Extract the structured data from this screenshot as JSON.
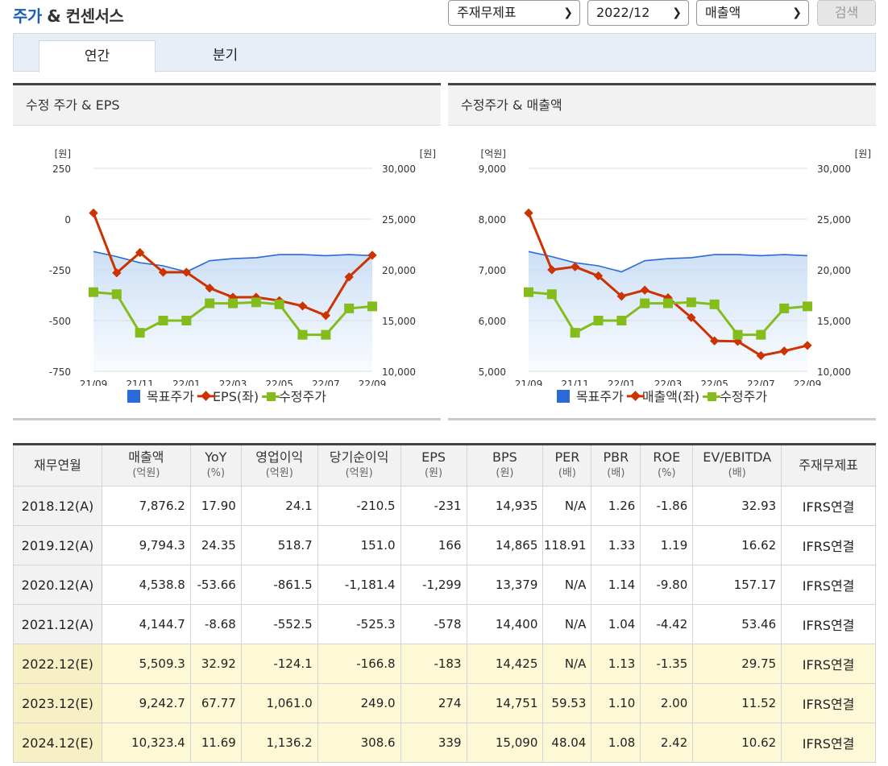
{
  "header": {
    "title_accent": "주가",
    "title_rest": " & 컨센서스",
    "select_statement": "주재무제표",
    "select_period": "2022/12",
    "select_metric": "매출액",
    "search_label": "검색"
  },
  "tabs": [
    {
      "label": "연간"
    },
    {
      "label": "분기"
    }
  ],
  "charts": {
    "left_title": "수정 주가 & EPS",
    "right_title": "수정주가 & 매출액"
  },
  "chart_data": [
    {
      "type": "line",
      "x": [
        "21/09",
        "21/10",
        "21/11",
        "21/12",
        "22/01",
        "22/02",
        "22/03",
        "22/04",
        "22/05",
        "22/06",
        "22/07",
        "22/08",
        "22/09"
      ],
      "x_tick_labels": [
        "21/09",
        "21/11",
        "22/01",
        "22/03",
        "22/05",
        "22/07",
        "22/09"
      ],
      "left_unit": "[원]",
      "right_unit": "[원]",
      "ylim_left": [
        -750,
        250
      ],
      "ylim_right": [
        10000,
        30000
      ],
      "left_ticks": [
        "250",
        "0",
        "-250",
        "-500",
        "-750"
      ],
      "right_ticks": [
        "30,000",
        "25,000",
        "20,000",
        "15,000",
        "10,000"
      ],
      "series": [
        {
          "name": "목표주가",
          "axis": "right",
          "color": "#2b6ad8",
          "values": [
            21800,
            21300,
            20700,
            20400,
            19800,
            20900,
            21100,
            21200,
            21500,
            21500,
            21400,
            21500,
            21400
          ]
        },
        {
          "name": "EPS(좌)",
          "axis": "left",
          "color": "#cc3300",
          "values": [
            30,
            -265,
            -165,
            -262,
            -262,
            -340,
            -385,
            -385,
            -402,
            -428,
            -475,
            -285,
            -178
          ]
        },
        {
          "name": "수정주가",
          "axis": "right",
          "color": "#84bd1b",
          "values": [
            17800,
            17600,
            13800,
            15000,
            15000,
            16700,
            16700,
            16800,
            16600,
            13600,
            13600,
            16200,
            16400
          ]
        }
      ],
      "legend": [
        "목표주가",
        "EPS(좌)",
        "수정주가"
      ],
      "legend_position": "bottom",
      "grid": true
    },
    {
      "type": "line",
      "x": [
        "21/09",
        "21/10",
        "21/11",
        "21/12",
        "22/01",
        "22/02",
        "22/03",
        "22/04",
        "22/05",
        "22/06",
        "22/07",
        "22/08",
        "22/09"
      ],
      "x_tick_labels": [
        "21/09",
        "21/11",
        "22/01",
        "22/03",
        "22/05",
        "22/07",
        "22/09"
      ],
      "left_unit": "[억원]",
      "right_unit": "[원]",
      "ylim_left": [
        5000,
        9000
      ],
      "ylim_right": [
        10000,
        30000
      ],
      "left_ticks": [
        "9,000",
        "8,000",
        "7,000",
        "6,000",
        "5,000"
      ],
      "right_ticks": [
        "30,000",
        "25,000",
        "20,000",
        "15,000",
        "10,000"
      ],
      "series": [
        {
          "name": "목표주가",
          "axis": "right",
          "color": "#2b6ad8",
          "values": [
            21800,
            21300,
            20700,
            20400,
            19800,
            20900,
            21100,
            21200,
            21500,
            21500,
            21400,
            21500,
            21400
          ]
        },
        {
          "name": "매출액(좌)",
          "axis": "left",
          "color": "#cc3300",
          "values": [
            8120,
            7000,
            7060,
            6880,
            6480,
            6600,
            6450,
            6060,
            5600,
            5590,
            5310,
            5400,
            5510
          ]
        },
        {
          "name": "수정주가",
          "axis": "right",
          "color": "#84bd1b",
          "values": [
            17800,
            17600,
            13800,
            15000,
            15000,
            16700,
            16700,
            16800,
            16600,
            13600,
            13600,
            16200,
            16400
          ]
        }
      ],
      "legend": [
        "목표주가",
        "매출액(좌)",
        "수정주가"
      ],
      "legend_position": "bottom",
      "grid": true
    }
  ],
  "table": {
    "headers": [
      {
        "label": "재무연월",
        "unit": ""
      },
      {
        "label": "매출액",
        "unit": "(억원)"
      },
      {
        "label": "YoY",
        "unit": "(%)"
      },
      {
        "label": "영업이익",
        "unit": "(억원)"
      },
      {
        "label": "당기순이익",
        "unit": "(억원)"
      },
      {
        "label": "EPS",
        "unit": "(원)"
      },
      {
        "label": "BPS",
        "unit": "(원)"
      },
      {
        "label": "PER",
        "unit": "(배)"
      },
      {
        "label": "PBR",
        "unit": "(배)"
      },
      {
        "label": "ROE",
        "unit": "(%)"
      },
      {
        "label": "EV/EBITDA",
        "unit": "(배)"
      },
      {
        "label": "주재무제표",
        "unit": ""
      }
    ],
    "rows": [
      {
        "estimate": false,
        "cells": [
          "2018.12(A)",
          "7,876.2",
          "17.90",
          "24.1",
          "-210.5",
          "-231",
          "14,935",
          "N/A",
          "1.26",
          "-1.86",
          "32.93",
          "IFRS연결"
        ]
      },
      {
        "estimate": false,
        "cells": [
          "2019.12(A)",
          "9,794.3",
          "24.35",
          "518.7",
          "151.0",
          "166",
          "14,865",
          "118.91",
          "1.33",
          "1.19",
          "16.62",
          "IFRS연결"
        ]
      },
      {
        "estimate": false,
        "cells": [
          "2020.12(A)",
          "4,538.8",
          "-53.66",
          "-861.5",
          "-1,181.4",
          "-1,299",
          "13,379",
          "N/A",
          "1.14",
          "-9.80",
          "157.17",
          "IFRS연결"
        ]
      },
      {
        "estimate": false,
        "cells": [
          "2021.12(A)",
          "4,144.7",
          "-8.68",
          "-552.5",
          "-525.3",
          "-578",
          "14,400",
          "N/A",
          "1.04",
          "-4.42",
          "53.46",
          "IFRS연결"
        ]
      },
      {
        "estimate": true,
        "cells": [
          "2022.12(E)",
          "5,509.3",
          "32.92",
          "-124.1",
          "-166.8",
          "-183",
          "14,425",
          "N/A",
          "1.13",
          "-1.35",
          "29.75",
          "IFRS연결"
        ]
      },
      {
        "estimate": true,
        "cells": [
          "2023.12(E)",
          "9,242.7",
          "67.77",
          "1,061.0",
          "249.0",
          "274",
          "14,751",
          "59.53",
          "1.10",
          "2.00",
          "11.52",
          "IFRS연결"
        ]
      },
      {
        "estimate": true,
        "cells": [
          "2024.12(E)",
          "10,323.4",
          "11.69",
          "1,136.2",
          "308.6",
          "339",
          "15,090",
          "48.04",
          "1.08",
          "2.42",
          "10.62",
          "IFRS연결"
        ]
      }
    ]
  }
}
